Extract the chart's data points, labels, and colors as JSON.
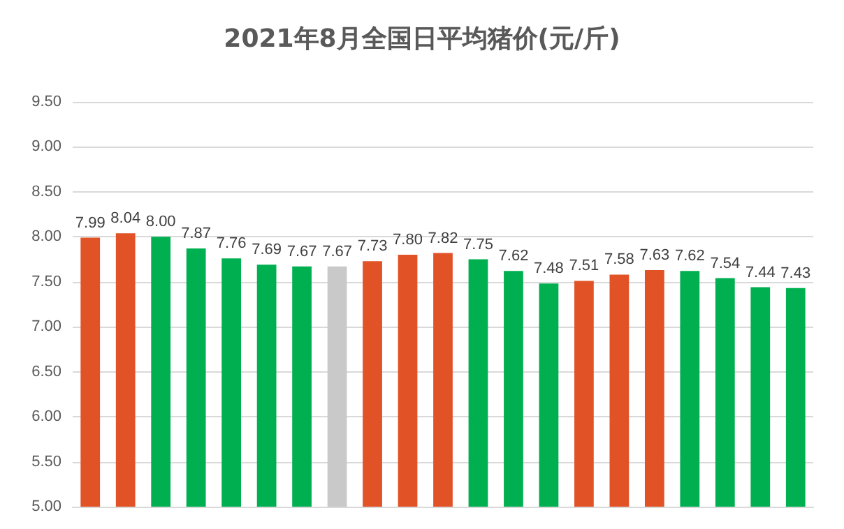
{
  "chart_data": {
    "type": "bar",
    "title": "2021年8月全国日平均猪价(元/斤)",
    "categories": [
      null,
      null,
      null,
      null,
      null,
      null,
      null,
      null,
      null,
      null,
      null,
      null,
      null,
      null,
      null,
      null,
      null,
      null,
      null,
      null,
      null
    ],
    "values": [
      7.99,
      8.04,
      8.0,
      7.87,
      7.76,
      7.69,
      7.67,
      7.67,
      7.73,
      7.8,
      7.82,
      7.75,
      7.62,
      7.48,
      7.51,
      7.58,
      7.63,
      7.62,
      7.54,
      7.44,
      7.43
    ],
    "value_labels": [
      "7.99",
      "8.04",
      "8.00",
      "7.87",
      "7.76",
      "7.69",
      "7.67",
      "7.67",
      "7.73",
      "7.80",
      "7.82",
      "7.75",
      "7.62",
      "7.48",
      "7.51",
      "7.58",
      "7.63",
      "7.62",
      "7.54",
      "7.44",
      "7.43"
    ],
    "colors": [
      "#e15327",
      "#e15327",
      "#00b050",
      "#00b050",
      "#00b050",
      "#00b050",
      "#00b050",
      "#c9c9c9",
      "#e15327",
      "#e15327",
      "#e15327",
      "#00b050",
      "#00b050",
      "#00b050",
      "#e15327",
      "#e15327",
      "#e15327",
      "#00b050",
      "#00b050",
      "#00b050",
      "#00b050"
    ],
    "ylim": [
      5,
      9.5
    ],
    "yticks": [
      {
        "value": 5,
        "label": "5.00"
      },
      {
        "value": 5.5,
        "label": "5.50"
      },
      {
        "value": 6,
        "label": "6.00"
      },
      {
        "value": 6.5,
        "label": "6.50"
      },
      {
        "value": 7,
        "label": "7.00"
      },
      {
        "value": 7.5,
        "label": "7.50"
      },
      {
        "value": 8,
        "label": "8.00"
      },
      {
        "value": 8.5,
        "label": "8.50"
      },
      {
        "value": 9,
        "label": "9.00"
      },
      {
        "value": 9.5,
        "label": "9.50"
      }
    ],
    "grid": "y"
  }
}
